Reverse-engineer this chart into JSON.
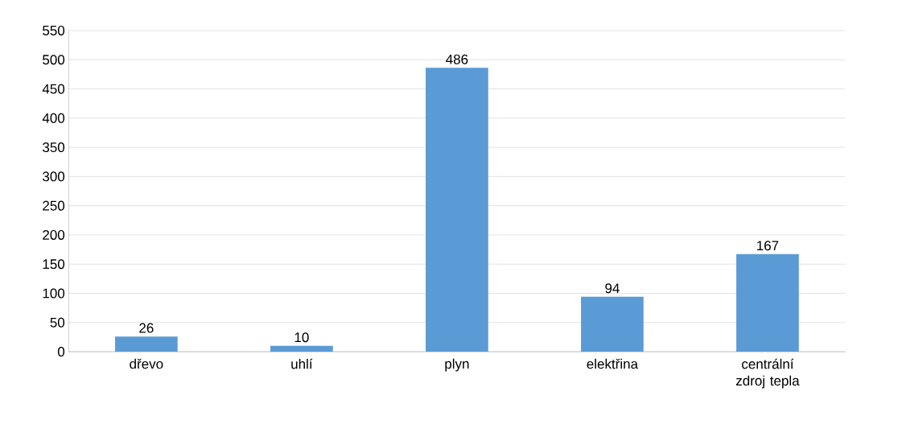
{
  "chart_data": {
    "type": "bar",
    "categories": [
      "dřevo",
      "uhlí",
      "plyn",
      "elektřina",
      "centrální zdroj tepla"
    ],
    "values": [
      26,
      10,
      486,
      94,
      167
    ],
    "color": "#5b9bd5",
    "ylim": [
      0,
      550
    ],
    "yticks": [
      0,
      50,
      100,
      150,
      200,
      250,
      300,
      350,
      400,
      450,
      500,
      550
    ],
    "grid": "y",
    "data_labels": true
  }
}
